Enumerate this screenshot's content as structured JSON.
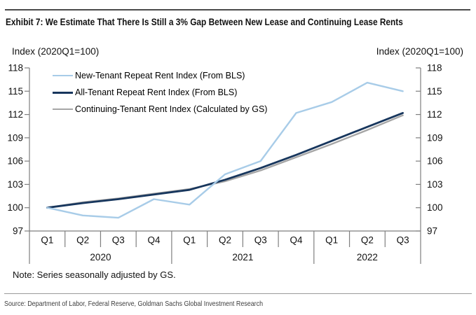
{
  "title": "Exhibit 7: We Estimate That There Is Still a 3% Gap Between New Lease and Continuing Lease Rents",
  "axis_label_left": "Index (2020Q1=100)",
  "axis_label_right": "Index (2020Q1=100)",
  "note": "Note: Series seasonally adjusted by GS.",
  "source": "Source: Department of Labor, Federal Reserve, Goldman Sachs Global Investment Research",
  "colors": {
    "new_tenant": "#A8CCE8",
    "all_tenant": "#17365D",
    "continuing_tenant": "#A6A6A6",
    "axis": "#7f7f7f",
    "rule_top": "#4a4a4a",
    "rule_bottom": "#9a9a9a"
  },
  "chart_data": {
    "type": "line",
    "title": "We Estimate That There Is Still a 3% Gap Between New Lease and Continuing Lease Rents",
    "ylabel": "Index (2020Q1=100)",
    "ylim": [
      97,
      118
    ],
    "yticks": [
      97,
      100,
      103,
      106,
      109,
      112,
      115,
      118
    ],
    "grid": false,
    "legend_position": "top-left-inside",
    "x_categories": [
      "Q1",
      "Q2",
      "Q3",
      "Q4",
      "Q1",
      "Q2",
      "Q3",
      "Q4",
      "Q1",
      "Q2",
      "Q3"
    ],
    "year_groups": [
      {
        "label": "2020",
        "quarters": 4
      },
      {
        "label": "2021",
        "quarters": 4
      },
      {
        "label": "2022",
        "quarters": 3
      }
    ],
    "series": [
      {
        "name": "New-Tenant Repeat Rent Index (From BLS)",
        "color": "#A8CCE8",
        "values": [
          100.0,
          99.0,
          98.7,
          101.1,
          100.4,
          104.3,
          106.0,
          112.2,
          113.6,
          116.1,
          115.0
        ]
      },
      {
        "name": "All-Tenant Repeat Rent Index (From BLS)",
        "color": "#17365D",
        "values": [
          100.0,
          100.6,
          101.1,
          101.7,
          102.3,
          103.6,
          105.1,
          106.8,
          108.6,
          110.4,
          112.2
        ]
      },
      {
        "name": "Continuing-Tenant Rent Index (Calculated by GS)",
        "color": "#A6A6A6",
        "values": [
          100.0,
          100.7,
          101.2,
          101.8,
          102.4,
          103.4,
          104.8,
          106.5,
          108.2,
          110.0,
          111.9
        ]
      }
    ]
  }
}
